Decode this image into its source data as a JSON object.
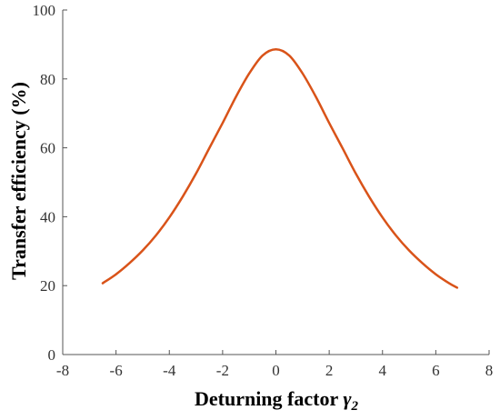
{
  "chart_data": {
    "type": "line",
    "title": "",
    "xlabel_main": "Deturning factor ",
    "xlabel_symbol": "γ",
    "xlabel_sub": "2",
    "ylabel": "Transfer efficiency (%)",
    "xlim": [
      -8,
      8
    ],
    "ylim": [
      0,
      100
    ],
    "xticks": [
      -8,
      -6,
      -4,
      -2,
      0,
      2,
      4,
      6,
      8
    ],
    "yticks": [
      0,
      20,
      40,
      60,
      80,
      100
    ],
    "grid": false,
    "legend": "none",
    "series": [
      {
        "color": "#d95319",
        "x": [
          -6.5,
          -6.0,
          -5.5,
          -5.0,
          -4.5,
          -4.0,
          -3.5,
          -3.0,
          -2.5,
          -2.0,
          -1.5,
          -1.0,
          -0.5,
          0.0,
          0.5,
          1.0,
          1.5,
          2.0,
          2.5,
          3.0,
          3.5,
          4.0,
          4.5,
          5.0,
          5.5,
          6.0,
          6.5,
          6.8
        ],
        "y": [
          20.7,
          23.3,
          26.5,
          30.2,
          34.6,
          39.8,
          45.8,
          52.5,
          59.9,
          67.2,
          74.8,
          81.6,
          86.8,
          88.6,
          86.8,
          81.6,
          74.8,
          67.2,
          59.9,
          52.5,
          45.8,
          39.8,
          34.6,
          30.2,
          26.5,
          23.3,
          20.7,
          19.4
        ]
      }
    ]
  }
}
